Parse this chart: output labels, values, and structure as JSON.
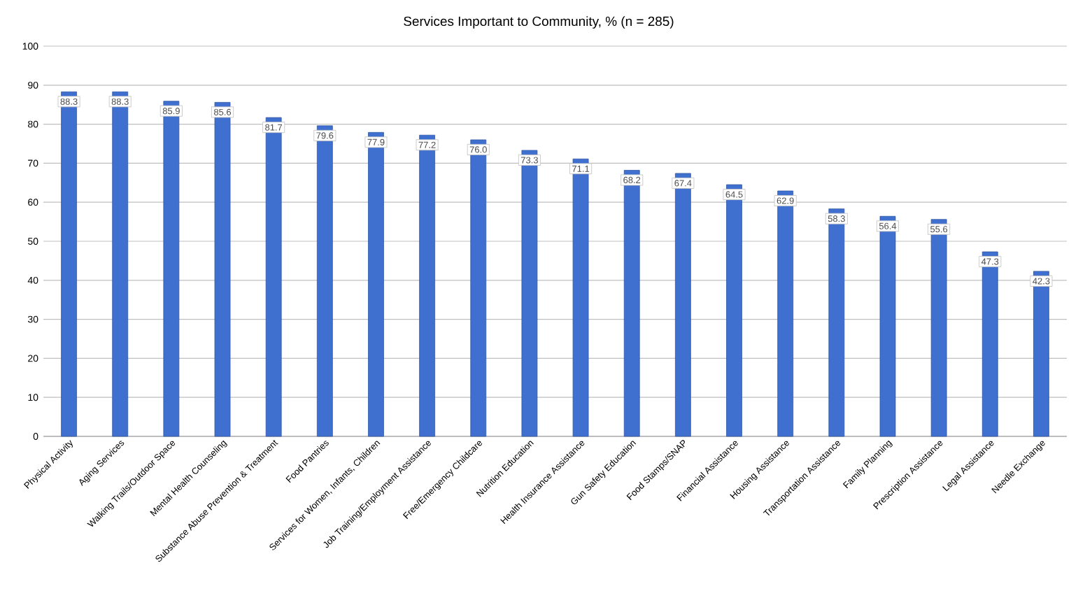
{
  "chart_data": {
    "type": "bar",
    "title": "Services Important to Community, % (n = 285)",
    "categories": [
      "Physical Activity",
      "Aging Services",
      "Walking Trails/Outdoor Space",
      "Mental Health Counseling",
      "Substance Abuse Prevention & Treatment",
      "Food Pantries",
      "Services for Women, Infants, Children",
      "Job Training/Employment Assistance",
      "Free/Emergency Childcare",
      "Nutrition Education",
      "Health Insurance Assistance",
      "Gun Safety Education",
      "Food Stamps/SNAP",
      "Financial Assistance",
      "Housing Assistance",
      "Transportation Assistance",
      "Family Planning",
      "Prescription Assistance",
      "Legal Assistance",
      "Needle Exchange"
    ],
    "values": [
      88.3,
      88.3,
      85.9,
      85.6,
      81.7,
      79.6,
      77.9,
      77.2,
      76.0,
      73.3,
      71.1,
      68.2,
      67.4,
      64.5,
      62.9,
      58.3,
      56.4,
      55.6,
      47.3,
      42.3
    ],
    "value_labels": [
      "88.3",
      "88.3",
      "85.9",
      "85.6",
      "81.7",
      "79.6",
      "77.9",
      "77.2",
      "76.0",
      "73.3",
      "71.1",
      "68.2",
      "67.4",
      "64.5",
      "62.9",
      "58.3",
      "56.4",
      "55.6",
      "47.3",
      "42.3"
    ],
    "color": "#3f6fcf",
    "ylim": [
      0,
      100
    ],
    "yticks": [
      0,
      10,
      20,
      30,
      40,
      50,
      60,
      70,
      80,
      90,
      100
    ],
    "grid": "y"
  }
}
